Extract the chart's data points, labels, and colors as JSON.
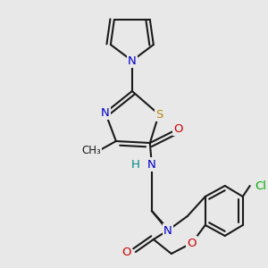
{
  "bg_color": "#e8e8e8",
  "bond_color": "#1a1a1a",
  "bond_width": 1.5,
  "figsize": [
    3.0,
    3.0
  ],
  "dpi": 100,
  "colors": {
    "N": "#0000cc",
    "S": "#b8860b",
    "O": "#cc0000",
    "H": "#008888",
    "Cl": "#00aa00",
    "C": "#1a1a1a"
  }
}
